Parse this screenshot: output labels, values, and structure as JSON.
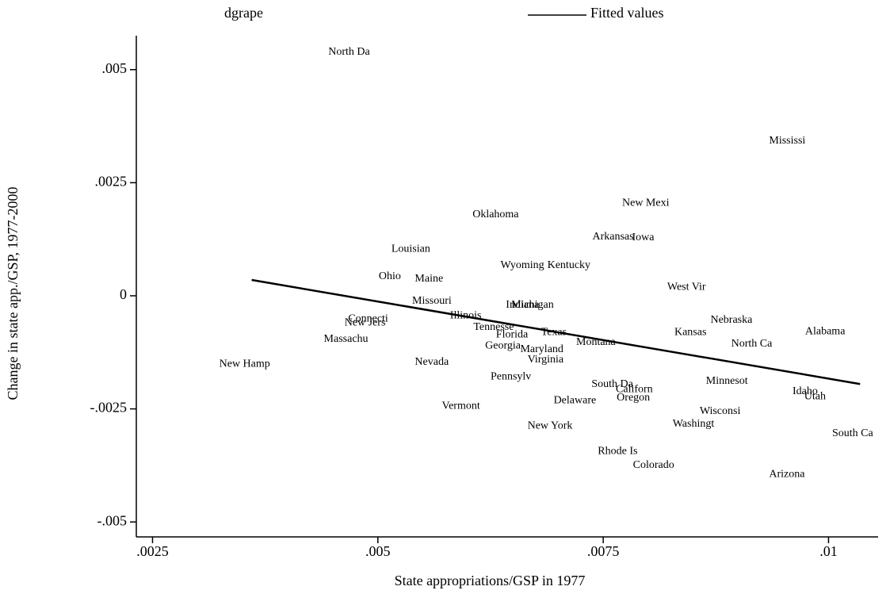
{
  "chart_data": {
    "type": "scatter",
    "xlabel": "State appropriations/GSP in 1977",
    "ylabel": "Change in state app./GSP, 1977-2000",
    "xlim": [
      0.00232,
      0.01055
    ],
    "ylim": [
      -0.00533,
      0.00575
    ],
    "xticks": [
      {
        "value": 0.0025,
        "label": ".0025"
      },
      {
        "value": 0.005,
        "label": ".005"
      },
      {
        "value": 0.0075,
        "label": ".0075"
      },
      {
        "value": 0.01,
        "label": ".01"
      }
    ],
    "yticks": [
      {
        "value": -0.005,
        "label": "-.005"
      },
      {
        "value": -0.0025,
        "label": "-.0025"
      },
      0,
      {
        "value": 0.0025,
        "label": ".0025"
      },
      {
        "value": 0.005,
        "label": ".005"
      }
    ],
    "series": [
      {
        "name": "dgrape",
        "color": "#000000",
        "labels": [
          "North Da",
          "Mississi",
          "New Mexi",
          "Oklahoma",
          "Arkansas",
          "Iowa",
          "Louisian",
          "Wyoming",
          "Kentucky",
          "Ohio",
          "Maine",
          "West Vir",
          "Missouri",
          "Indiana",
          "Michigan",
          "Illinois",
          "Connecti",
          "New Jers",
          "Nebraska",
          "Tennesse",
          "Florida",
          "Texas",
          "Kansas",
          "Alabama",
          "Massachu",
          "Montana",
          "Georgia",
          "North Ca",
          "Maryland",
          "Virginia",
          "New Hamp",
          "Nevada",
          "Pennsylv",
          "Minnesot",
          "South Da",
          "Californ",
          "Idaho",
          "Utah",
          "Oregon",
          "Delaware",
          "Vermont",
          "Wisconsi",
          "New York",
          "Washingt",
          "South Ca",
          "Rhode Is",
          "Colorado",
          "Arizona"
        ],
        "x": [
          0.00445,
          0.00934,
          0.00771,
          0.00605,
          0.00738,
          0.00782,
          0.00515,
          0.00636,
          0.00688,
          0.00501,
          0.00541,
          0.00821,
          0.00538,
          0.00642,
          0.00648,
          0.0058,
          0.00467,
          0.00463,
          0.00869,
          0.00606,
          0.00631,
          0.00681,
          0.00829,
          0.00974,
          0.0044,
          0.0072,
          0.00619,
          0.00892,
          0.00658,
          0.00666,
          0.00324,
          0.00541,
          0.00625,
          0.00864,
          0.00737,
          0.00764,
          0.0096,
          0.00973,
          0.00765,
          0.00695,
          0.00571,
          0.00857,
          0.00666,
          0.00827,
          0.01004,
          0.00744,
          0.00783,
          0.00934
        ],
        "values": [
          0.00539,
          0.00342,
          0.00205,
          0.00179,
          0.0013,
          0.00128,
          0.00103,
          0.00067,
          0.00067,
          0.00042,
          0.00037,
          0.00019,
          -0.00012,
          -0.00021,
          -0.00021,
          -0.00044,
          -0.00051,
          -0.0006,
          -0.00054,
          -0.0007,
          -0.00086,
          -0.00081,
          -0.00081,
          -0.00079,
          -0.00096,
          -0.00103,
          -0.00111,
          -0.00107,
          -0.00119,
          -0.00142,
          -0.00151,
          -0.00147,
          -0.00179,
          -0.00189,
          -0.00196,
          -0.00207,
          -0.00212,
          -0.00223,
          -0.00226,
          -0.00232,
          -0.00244,
          -0.00256,
          -0.00288,
          -0.00284,
          -0.00305,
          -0.00344,
          -0.00375,
          -0.00395
        ]
      },
      {
        "name": "Fitted values",
        "color": "#000000",
        "x": [
          0.0036,
          0.01035
        ],
        "values": [
          0.00035,
          -0.00195
        ]
      }
    ]
  }
}
